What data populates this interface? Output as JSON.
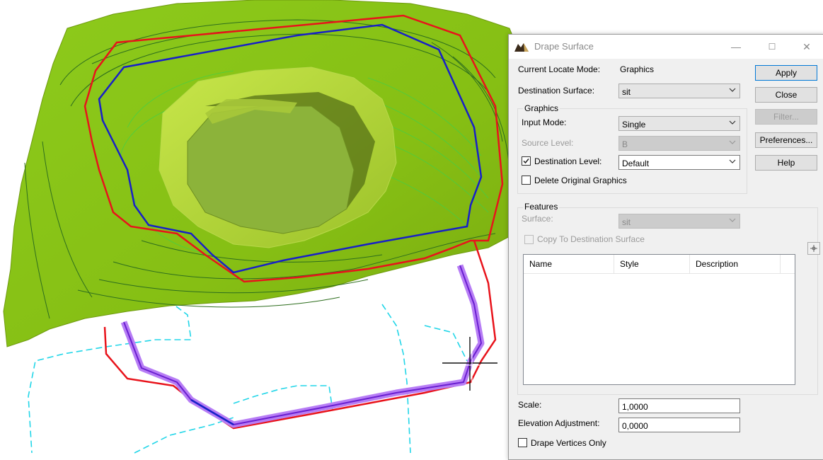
{
  "dialog": {
    "title": "Drape Surface",
    "title_buttons": {
      "minimize": "—",
      "maximize": "☐",
      "close": "✕"
    },
    "current_locate_mode_label": "Current Locate Mode:",
    "current_locate_mode_value": "Graphics",
    "destination_surface_label": "Destination Surface:",
    "destination_surface_value": "sit",
    "buttons": {
      "apply": "Apply",
      "close": "Close",
      "filter": "Filter...",
      "preferences": "Preferences...",
      "help": "Help"
    },
    "graphics_group": {
      "title": "Graphics",
      "input_mode_label": "Input Mode:",
      "input_mode_value": "Single",
      "source_level_label": "Source Level:",
      "source_level_value": "B",
      "destination_level_label": "Destination Level:",
      "destination_level_value": "Default",
      "destination_level_checked": true,
      "delete_original_label": "Delete Original Graphics",
      "delete_original_checked": false
    },
    "features_group": {
      "title": "Features",
      "surface_label": "Surface:",
      "surface_value": "sit",
      "copy_label": "Copy To Destination Surface",
      "copy_checked": false,
      "columns": [
        "Name",
        "Style",
        "Description"
      ]
    },
    "scale_label": "Scale:",
    "scale_value": "1,0000",
    "elevation_label": "Elevation Adjustment:",
    "elevation_value": "0,0000",
    "drape_vertices_label": "Drape Vertices Only",
    "drape_vertices_checked": false
  },
  "viewport": {
    "terrain_color": "#8fc41a",
    "contour_color": "#2e6e1e",
    "boundary_red": "#e8131b",
    "boundary_blue": "#1720c8",
    "highlight_purple": "#a25cf0",
    "dashed_cyan": "#22d6e8",
    "cursor": "crosshair"
  }
}
